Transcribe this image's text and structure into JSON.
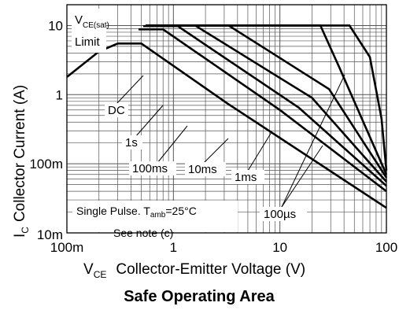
{
  "chart_data": {
    "type": "line",
    "title": "Safe Operating Area",
    "x_scale": "log",
    "y_scale": "log",
    "xlim": [
      0.1,
      100
    ],
    "ylim": [
      0.01,
      20
    ],
    "xlabel": {
      "main": "V",
      "sub": "CE",
      "rest": "Collector-Emitter Voltage (V)"
    },
    "ylabel": {
      "main": "I",
      "sub": "C",
      "rest": "Collector Current (A)"
    },
    "x_tick_labels": [
      {
        "value": 0.1,
        "label": "100m"
      },
      {
        "value": 1,
        "label": "1"
      },
      {
        "value": 10,
        "label": "10"
      },
      {
        "value": 100,
        "label": "100"
      }
    ],
    "y_tick_labels": [
      {
        "value": 0.01,
        "label": "10m"
      },
      {
        "value": 0.1,
        "label": "100m"
      },
      {
        "value": 1,
        "label": "1"
      },
      {
        "value": 10,
        "label": "10"
      }
    ],
    "grid": true,
    "series": [
      {
        "name": "DC",
        "points": [
          [
            0.1,
            1.8
          ],
          [
            0.2,
            4.2
          ],
          [
            0.3,
            5.5
          ],
          [
            0.5,
            5.5
          ],
          [
            3.2,
            0.75
          ],
          [
            100,
            0.023
          ]
        ]
      },
      {
        "name": "1s",
        "points": [
          [
            0.47,
            8.8
          ],
          [
            0.8,
            8.8
          ],
          [
            10,
            0.6
          ],
          [
            100,
            0.04
          ]
        ]
      },
      {
        "name": "100ms",
        "points": [
          [
            0.52,
            9.8
          ],
          [
            1.1,
            9.8
          ],
          [
            15,
            0.65
          ],
          [
            100,
            0.048
          ]
        ]
      },
      {
        "name": "10ms",
        "points": [
          [
            0.55,
            10
          ],
          [
            1.6,
            10
          ],
          [
            20,
            0.9
          ],
          [
            100,
            0.055
          ]
        ]
      },
      {
        "name": "1ms",
        "points": [
          [
            0.55,
            10
          ],
          [
            3.3,
            10
          ],
          [
            29,
            1.2
          ],
          [
            100,
            0.063
          ]
        ]
      },
      {
        "name": "100µs",
        "points": [
          [
            0.55,
            10
          ],
          [
            24,
            10
          ],
          [
            36,
            2.5
          ],
          [
            100,
            0.07
          ]
        ]
      },
      {
        "name": "",
        "points": [
          [
            0.55,
            10
          ],
          [
            45,
            10
          ],
          [
            70,
            3.5
          ],
          [
            90,
            0.45
          ],
          [
            100,
            0.08
          ]
        ]
      }
    ],
    "annotations": {
      "limit_sub": "CE(sat)",
      "limit_word": "Limit",
      "dc": "DC",
      "s1": "1s",
      "ms100": "100ms",
      "ms10": "10ms",
      "ms1": "1ms",
      "us100": "100µs",
      "pulse_prefix": "Single Pulse. T",
      "pulse_sub": "amb",
      "pulse_suffix": "=25°C",
      "note": "See note (c)"
    }
  }
}
